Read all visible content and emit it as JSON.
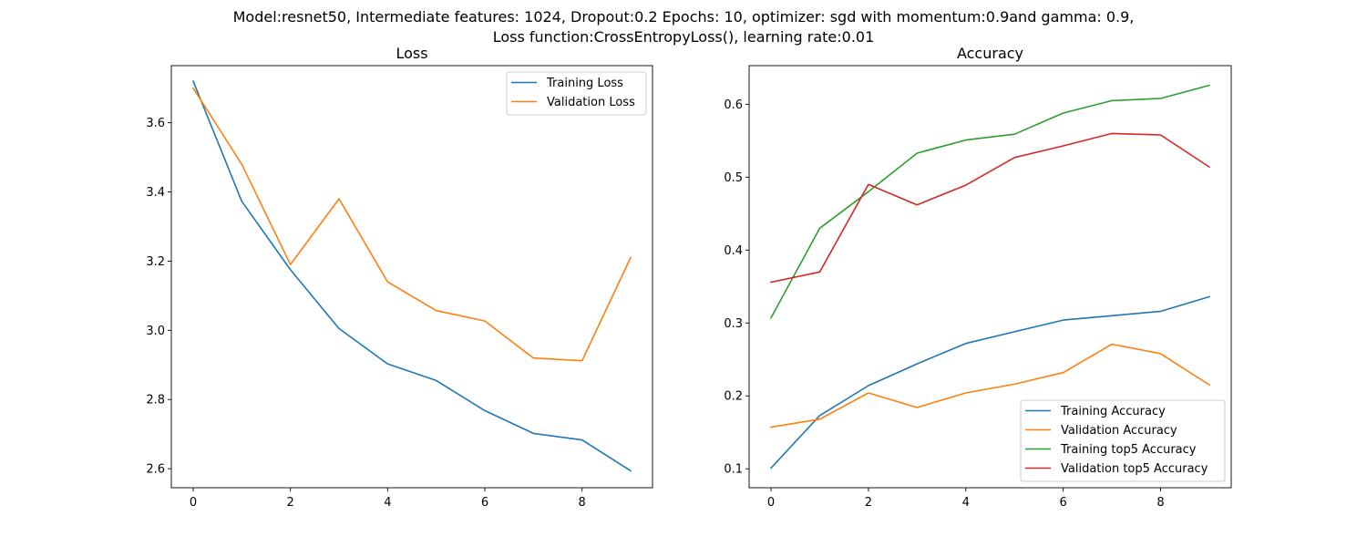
{
  "figure": {
    "title_line1": "Model:resnet50, Intermediate features: 1024, Dropout:0.2 Epochs: 10, optimizer: sgd with momentum:0.9and gamma: 0.9,",
    "title_line2": "Loss function:CrossEntropyLoss(), learning rate:0.01"
  },
  "chart_data": [
    {
      "type": "line",
      "title": "Loss",
      "xlabel": "",
      "ylabel": "",
      "x": [
        0,
        1,
        2,
        3,
        4,
        5,
        6,
        7,
        8,
        9
      ],
      "xlim": [
        -0.45,
        9.45
      ],
      "ylim": [
        2.545,
        3.765
      ],
      "xticks": [
        0,
        2,
        4,
        6,
        8
      ],
      "yticks": [
        2.6,
        2.8,
        3.0,
        3.2,
        3.4,
        3.6
      ],
      "ytick_labels": [
        "2.6",
        "2.8",
        "3.0",
        "3.2",
        "3.4",
        "3.6"
      ],
      "grid": false,
      "legend_position": "top-right",
      "series": [
        {
          "name": "Training Loss",
          "color": "#1f77b4",
          "values": [
            3.72,
            3.373,
            3.175,
            3.005,
            2.903,
            2.855,
            2.768,
            2.702,
            2.683,
            2.594
          ]
        },
        {
          "name": "Validation Loss",
          "color": "#ff7f0e",
          "values": [
            3.7,
            3.48,
            3.19,
            3.38,
            3.14,
            3.057,
            3.027,
            2.92,
            2.912,
            3.21
          ]
        }
      ]
    },
    {
      "type": "line",
      "title": "Accuracy",
      "xlabel": "",
      "ylabel": "",
      "x": [
        0,
        1,
        2,
        3,
        4,
        5,
        6,
        7,
        8,
        9
      ],
      "xlim": [
        -0.45,
        9.45
      ],
      "ylim": [
        0.074,
        0.653
      ],
      "xticks": [
        0,
        2,
        4,
        6,
        8
      ],
      "yticks": [
        0.1,
        0.2,
        0.3,
        0.4,
        0.5,
        0.6
      ],
      "ytick_labels": [
        "0.1",
        "0.2",
        "0.3",
        "0.4",
        "0.5",
        "0.6"
      ],
      "grid": false,
      "legend_position": "bottom-right",
      "series": [
        {
          "name": "Training Accuracy",
          "color": "#1f77b4",
          "values": [
            0.101,
            0.173,
            0.214,
            0.244,
            0.272,
            0.288,
            0.304,
            0.31,
            0.316,
            0.336
          ]
        },
        {
          "name": "Validation Accuracy",
          "color": "#ff7f0e",
          "values": [
            0.157,
            0.168,
            0.204,
            0.184,
            0.204,
            0.216,
            0.232,
            0.271,
            0.258,
            0.215
          ]
        },
        {
          "name": "Training top5 Accuracy",
          "color": "#2ca02c",
          "values": [
            0.307,
            0.43,
            0.48,
            0.533,
            0.551,
            0.559,
            0.588,
            0.605,
            0.608,
            0.626
          ]
        },
        {
          "name": "Validation top5 Accuracy",
          "color": "#d62728",
          "values": [
            0.356,
            0.37,
            0.49,
            0.462,
            0.489,
            0.527,
            0.543,
            0.56,
            0.558,
            0.514
          ]
        }
      ]
    }
  ]
}
